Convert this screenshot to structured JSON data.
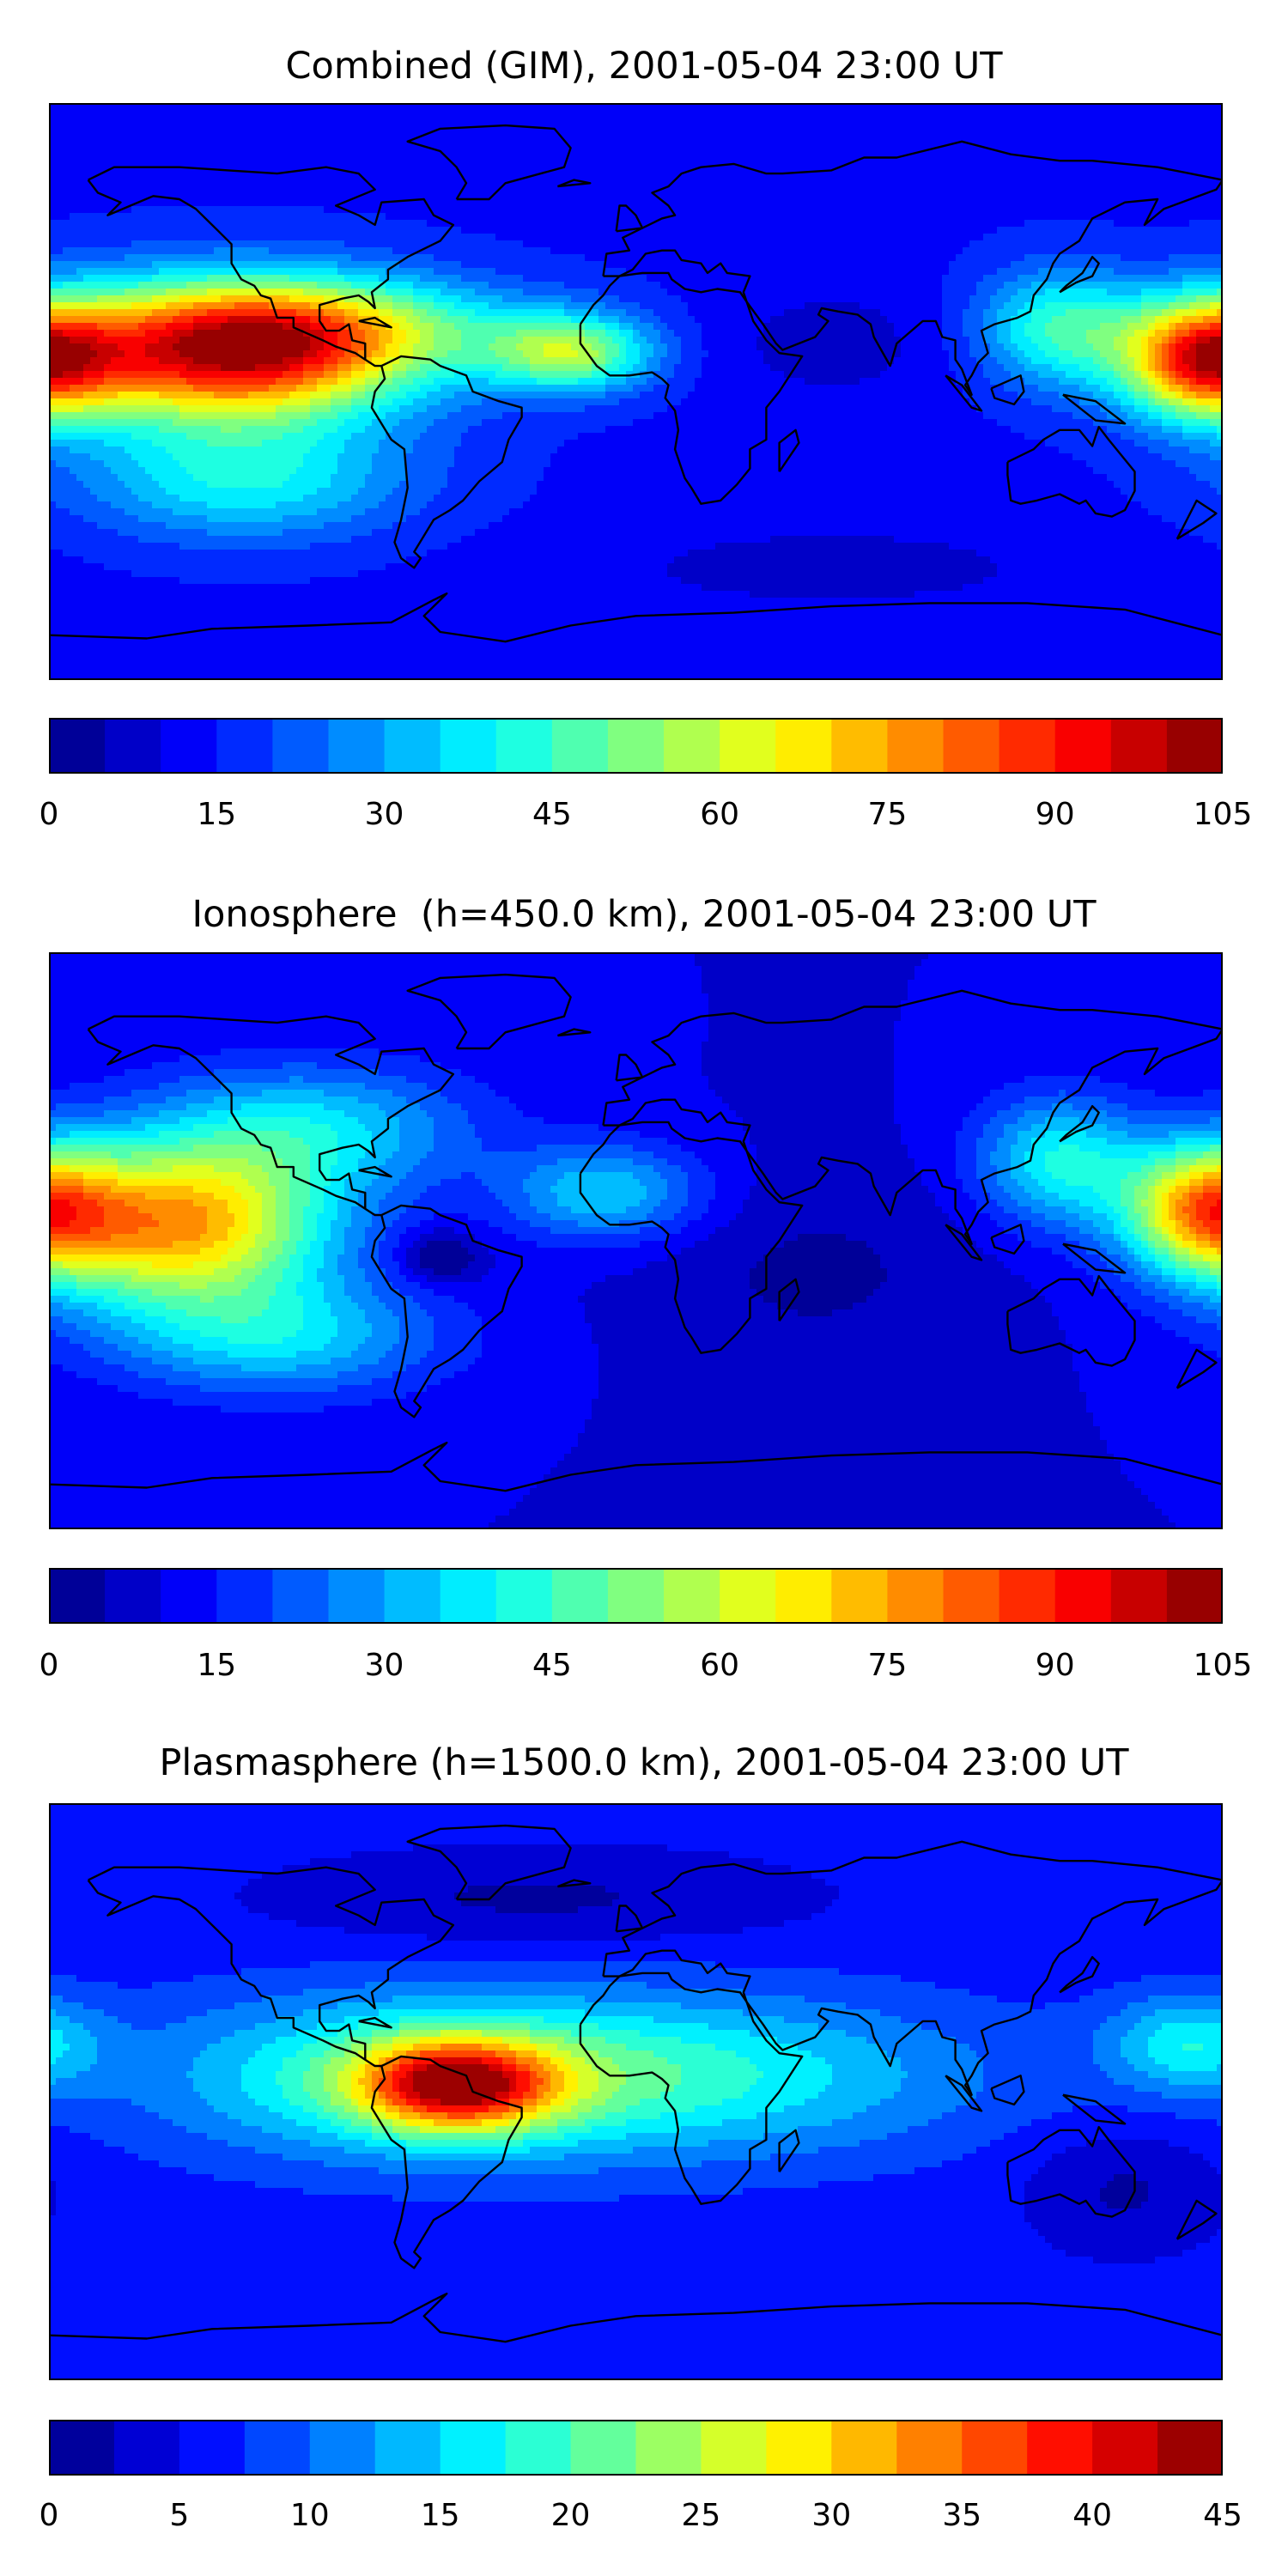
{
  "panels": [
    {
      "id": "combined",
      "title": "Combined (GIM), 2001-05-04 23:00 UT",
      "colorbar": {
        "min": 0,
        "max": 105,
        "step": 5,
        "ticks": [
          "0",
          "15",
          "30",
          "45",
          "60",
          "75",
          "90",
          "105"
        ]
      },
      "field": {
        "base": 14,
        "blobs": [
          {
            "lon": -125,
            "lat": 12,
            "rlon": 55,
            "rlat": 22,
            "amp": 80
          },
          {
            "lon": -90,
            "lat": 20,
            "rlon": 60,
            "rlat": 15,
            "amp": 25
          },
          {
            "lon": -20,
            "lat": 12,
            "rlon": 25,
            "rlat": 12,
            "amp": 40
          },
          {
            "lon": 175,
            "lat": 10,
            "rlon": 25,
            "rlat": 18,
            "amp": 65
          },
          {
            "lon": 130,
            "lat": 20,
            "rlon": 25,
            "rlat": 18,
            "amp": 30
          },
          {
            "lon": -120,
            "lat": -28,
            "rlon": 50,
            "rlat": 18,
            "amp": 25
          },
          {
            "lon": 60,
            "lat": 15,
            "rlon": 40,
            "rlat": 20,
            "amp": -6
          },
          {
            "lon": 60,
            "lat": -55,
            "rlon": 80,
            "rlat": 15,
            "amp": -6
          }
        ]
      }
    },
    {
      "id": "ionosphere",
      "title": "Ionosphere  (h=450.0 km), 2001-05-04 23:00 UT",
      "colorbar": {
        "min": 0,
        "max": 105,
        "step": 5,
        "ticks": [
          "0",
          "15",
          "30",
          "45",
          "60",
          "75",
          "90",
          "105"
        ]
      },
      "field": {
        "base": 10,
        "blobs": [
          {
            "lon": -140,
            "lat": 5,
            "rlon": 45,
            "rlat": 25,
            "amp": 65
          },
          {
            "lon": -100,
            "lat": 35,
            "rlon": 50,
            "rlat": 20,
            "amp": 25
          },
          {
            "lon": 175,
            "lat": 10,
            "rlon": 25,
            "rlat": 20,
            "amp": 55
          },
          {
            "lon": -10,
            "lat": 15,
            "rlon": 30,
            "rlat": 15,
            "amp": 25
          },
          {
            "lon": 130,
            "lat": 25,
            "rlon": 25,
            "rlat": 20,
            "amp": 30
          },
          {
            "lon": -60,
            "lat": -5,
            "rlon": 12,
            "rlat": 8,
            "amp": -15
          },
          {
            "lon": -110,
            "lat": -30,
            "rlon": 50,
            "rlat": 18,
            "amp": 25
          },
          {
            "lon": 55,
            "lat": -10,
            "rlon": 50,
            "rlat": 30,
            "amp": -6
          }
        ]
      }
    },
    {
      "id": "plasmasphere",
      "title": "Plasmasphere (h=1500.0 km), 2001-05-04 23:00 UT",
      "colorbar": {
        "min": 0,
        "max": 45,
        "step": 2.5,
        "ticks": [
          "0",
          "5",
          "10",
          "15",
          "20",
          "25",
          "30",
          "35",
          "40",
          "45"
        ]
      },
      "field": {
        "base": 6,
        "blobs": [
          {
            "lon": -55,
            "lat": 2,
            "rlon": 30,
            "rlat": 14,
            "amp": 26
          },
          {
            "lon": -70,
            "lat": 5,
            "rlon": 80,
            "rlat": 25,
            "amp": 12
          },
          {
            "lon": 20,
            "lat": 5,
            "rlon": 90,
            "rlat": 25,
            "amp": 10
          },
          {
            "lon": 170,
            "lat": 15,
            "rlon": 25,
            "rlat": 15,
            "amp": 10
          },
          {
            "lon": -30,
            "lat": 60,
            "rlon": 80,
            "rlat": 15,
            "amp": -4
          },
          {
            "lon": 150,
            "lat": -30,
            "rlon": 30,
            "rlat": 20,
            "amp": -4
          }
        ]
      }
    }
  ]
}
